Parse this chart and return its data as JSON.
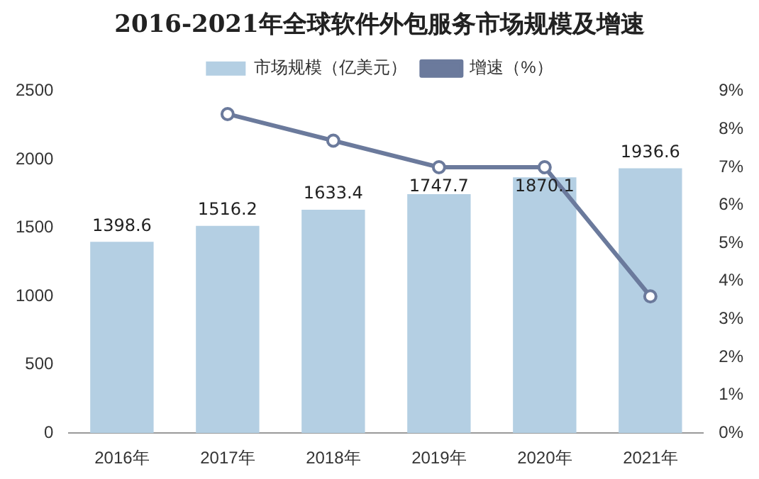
{
  "chart_data": {
    "type": "bar",
    "title": "2016-2021年全球软件外包服务市场规模及增速",
    "categories": [
      "2016年",
      "2017年",
      "2018年",
      "2019年",
      "2020年",
      "2021年"
    ],
    "series": [
      {
        "name": "市场规模（亿美元）",
        "type": "bar",
        "color": "#b4cfe3",
        "values": [
          1398.6,
          1516.2,
          1633.4,
          1747.7,
          1870.1,
          1936.6
        ],
        "value_labels": [
          "1398.6",
          "1516.2",
          "1633.4",
          "1747.7",
          "1870.1",
          "1936.6"
        ]
      },
      {
        "name": "增速（%）",
        "type": "line",
        "axis": "y2",
        "color": "#6b7a9c",
        "values": [
          null,
          8.4,
          7.7,
          7.0,
          7.0,
          3.6
        ]
      }
    ],
    "ylim": [
      0,
      2500
    ],
    "yticks": [
      0,
      500,
      1000,
      1500,
      2000,
      2500
    ],
    "y2lim": [
      0,
      9
    ],
    "y2ticks": [
      {
        "value": 0,
        "label": "0%"
      },
      {
        "value": 1,
        "label": "1%"
      },
      {
        "value": 2,
        "label": "2%"
      },
      {
        "value": 3,
        "label": "3%"
      },
      {
        "value": 4,
        "label": "4%"
      },
      {
        "value": 5,
        "label": "5%"
      },
      {
        "value": 6,
        "label": "6%"
      },
      {
        "value": 7,
        "label": "7%"
      },
      {
        "value": 8,
        "label": "8%"
      },
      {
        "value": 9,
        "label": "9%"
      }
    ],
    "legend": "top",
    "marker": "circle",
    "grid": false
  }
}
